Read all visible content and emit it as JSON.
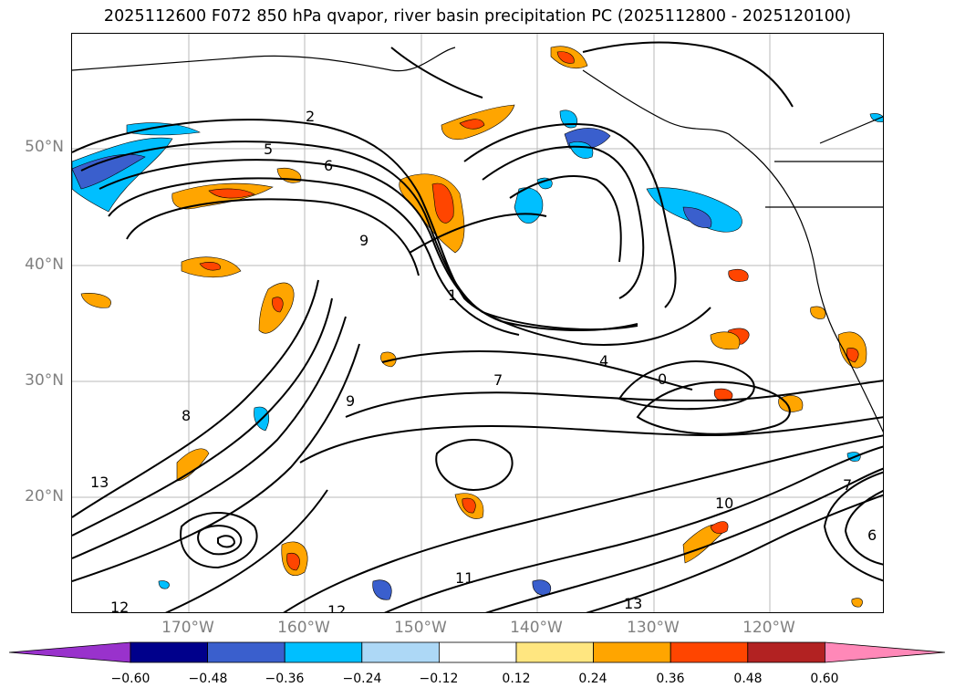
{
  "title": "2025112600 F072 850 hPa qvapor, river basin precipitation PC (2025112800 - 2025120100)",
  "map": {
    "lat_labels": [
      "50°N",
      "40°N",
      "30°N",
      "20°N"
    ],
    "lon_labels": [
      "170°W",
      "160°W",
      "150°W",
      "140°W",
      "130°W",
      "120°W"
    ],
    "contour_labels": [
      "2",
      "5",
      "6",
      "9",
      "1",
      "4",
      "7",
      "0",
      "9",
      "8",
      "13",
      "12",
      "11",
      "10",
      "7",
      "6",
      "13",
      "12"
    ]
  },
  "colorbar": {
    "ticks": [
      "−0.60",
      "−0.48",
      "−0.36",
      "−0.24",
      "−0.12",
      "0.12",
      "0.24",
      "0.36",
      "0.48",
      "0.60"
    ],
    "colors": [
      "#9932cc",
      "#00008b",
      "#3a5fcd",
      "#00bfff",
      "#add8f6",
      "#ffffff",
      "#ffe680",
      "#ffa500",
      "#ff4500",
      "#b22222",
      "#ff88b8"
    ]
  },
  "colors": {
    "positive_weak": "#ffa500",
    "positive_strong": "#ff4500",
    "negative_weak": "#00bfff",
    "negative_strong": "#3a5fcd",
    "grid": "#b0b0b0",
    "contour": "#000000"
  }
}
